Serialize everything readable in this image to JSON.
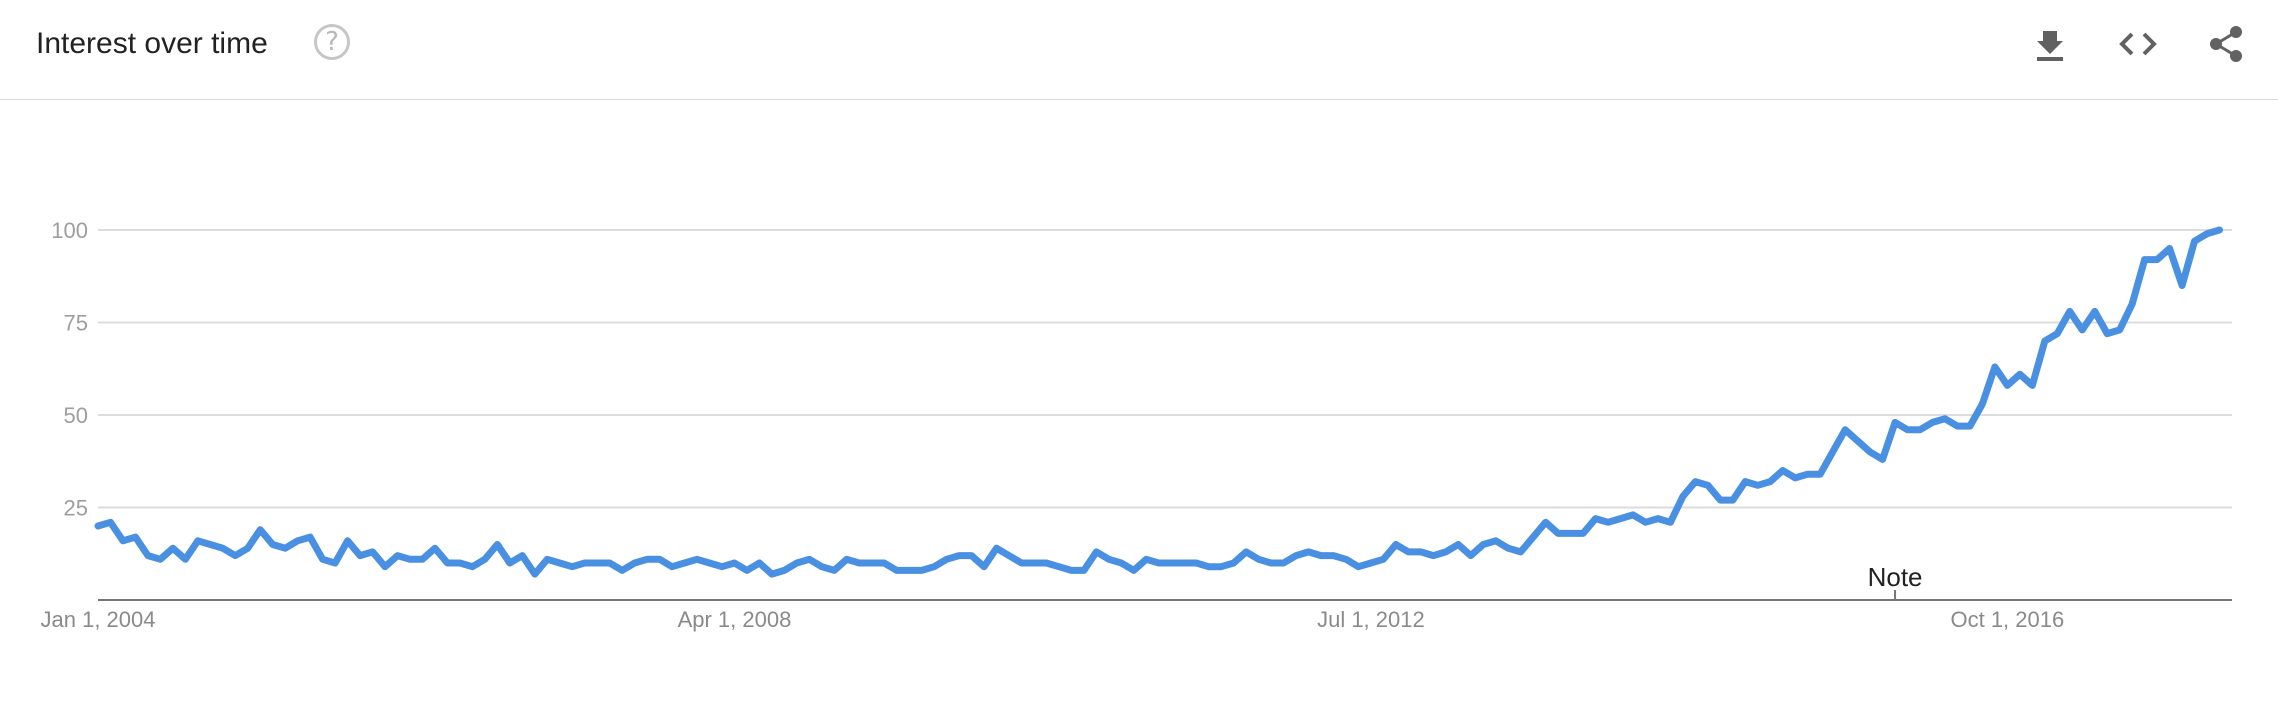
{
  "header": {
    "title": "Interest over time",
    "help_glyph": "?",
    "icons": [
      "question-circle-icon",
      "download-icon",
      "embed-code-icon",
      "share-icon"
    ]
  },
  "chart_data": {
    "type": "line",
    "title": "Interest over time",
    "xlabel": "",
    "ylabel": "",
    "ylim": [
      0,
      100
    ],
    "yticks": [
      "25",
      "50",
      "75",
      "100"
    ],
    "xticks": [
      "Jan 1, 2004",
      "Apr 1, 2008",
      "Jul 1, 2012",
      "Oct 1, 2016"
    ],
    "x_range": [
      "2004-01",
      "2018-04"
    ],
    "grid": true,
    "line_color": "#4a90e2",
    "annotations": [
      {
        "label": "Note",
        "at": "2016-01"
      }
    ],
    "series": [
      {
        "x_start": "2004-01",
        "frequency": "monthly",
        "values": [
          20,
          21,
          16,
          17,
          12,
          11,
          14,
          11,
          16,
          15,
          14,
          12,
          14,
          19,
          15,
          14,
          16,
          17,
          11,
          10,
          16,
          12,
          13,
          9,
          12,
          11,
          11,
          14,
          10,
          10,
          9,
          11,
          15,
          10,
          12,
          7,
          11,
          10,
          9,
          10,
          10,
          10,
          8,
          10,
          11,
          11,
          9,
          10,
          11,
          10,
          9,
          10,
          8,
          10,
          7,
          8,
          10,
          11,
          9,
          8,
          11,
          10,
          10,
          10,
          8,
          8,
          8,
          9,
          11,
          12,
          12,
          9,
          14,
          12,
          10,
          10,
          10,
          9,
          8,
          8,
          13,
          11,
          10,
          8,
          11,
          10,
          10,
          10,
          10,
          9,
          9,
          10,
          13,
          11,
          10,
          10,
          12,
          13,
          12,
          12,
          11,
          9,
          10,
          11,
          15,
          13,
          13,
          12,
          13,
          15,
          12,
          15,
          16,
          14,
          13,
          17,
          21,
          18,
          18,
          18,
          22,
          21,
          22,
          23,
          21,
          22,
          21,
          28,
          32,
          31,
          27,
          27,
          32,
          31,
          32,
          35,
          33,
          34,
          34,
          40,
          46,
          43,
          40,
          38,
          48,
          46,
          46,
          48,
          49,
          47,
          47,
          53,
          63,
          58,
          61,
          58,
          70,
          72,
          78,
          73,
          78,
          72,
          73,
          80,
          92,
          92,
          95,
          85,
          97,
          99,
          100
        ]
      }
    ]
  }
}
